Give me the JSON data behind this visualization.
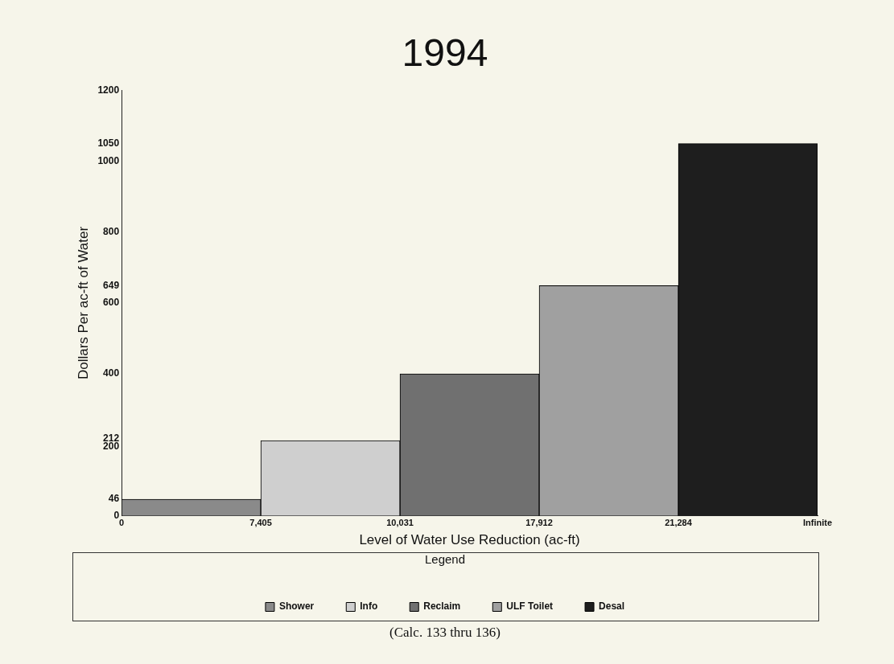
{
  "chart_data": {
    "type": "bar",
    "title": "1994",
    "xlabel": "Level of Water Use Reduction (ac-ft)",
    "ylabel": "Dollars Per ac-ft of Water",
    "legend_title": "Legend",
    "categories": [
      null,
      null,
      null,
      null,
      null
    ],
    "ylim": [
      0,
      1200
    ],
    "yticks": [
      0,
      46,
      200,
      212,
      400,
      600,
      649,
      800,
      1000,
      1050,
      1200
    ],
    "series": [
      {
        "name": "Shower",
        "color": "#8a8a8a",
        "values": [
          46,
          null,
          null,
          null,
          null
        ]
      },
      {
        "name": "Info",
        "color": "#cfcfcf",
        "values": [
          null,
          212,
          null,
          null,
          null
        ]
      },
      {
        "name": "Reclaim",
        "color": "#707070",
        "values": [
          null,
          null,
          400,
          null,
          null
        ]
      },
      {
        "name": "ULF Toilet",
        "color": "#a0a0a0",
        "values": [
          null,
          null,
          null,
          649,
          null
        ]
      },
      {
        "name": "Desal",
        "color": "#1e1e1e",
        "values": [
          null,
          null,
          null,
          null,
          1050
        ]
      }
    ],
    "grid": false,
    "legend": "bottom",
    "annotations": [
      "0",
      "7,405",
      "10,031",
      "17,912",
      "21,284",
      "Infinite",
      "(Calc. 133 thru 136)"
    ]
  }
}
